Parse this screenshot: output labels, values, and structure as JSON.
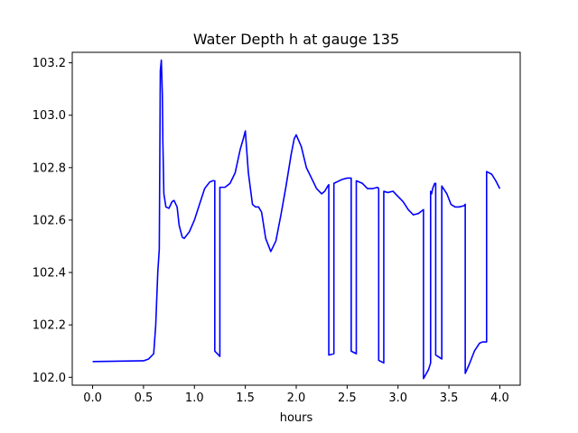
{
  "chart_data": {
    "type": "line",
    "title": "Water Depth h at gauge 135",
    "xlabel": "hours",
    "ylabel": "",
    "xlim": [
      -0.2,
      4.2
    ],
    "ylim": [
      101.97,
      103.24
    ],
    "x_ticks": [
      0.0,
      0.5,
      1.0,
      1.5,
      2.0,
      2.5,
      3.0,
      3.5,
      4.0
    ],
    "x_tick_labels": [
      "0.0",
      "0.5",
      "1.0",
      "1.5",
      "2.0",
      "2.5",
      "3.0",
      "3.5",
      "4.0"
    ],
    "y_ticks": [
      102.0,
      102.2,
      102.4,
      102.6,
      102.8,
      103.0,
      103.2
    ],
    "y_tick_labels": [
      "102.0",
      "102.2",
      "102.4",
      "102.6",
      "102.8",
      "103.0",
      "103.2"
    ],
    "grid": false,
    "legend": "none",
    "series": [
      {
        "color": "#0000ff",
        "x": [
          0.0,
          0.5,
          0.55,
          0.6,
          0.62,
          0.64,
          0.655,
          0.665,
          0.675,
          0.685,
          0.69,
          0.7,
          0.72,
          0.75,
          0.78,
          0.8,
          0.83,
          0.85,
          0.88,
          0.9,
          0.95,
          1.0,
          1.05,
          1.1,
          1.15,
          1.18,
          1.2,
          1.2,
          1.25,
          1.25,
          1.3,
          1.35,
          1.4,
          1.45,
          1.48,
          1.5,
          1.53,
          1.57,
          1.6,
          1.63,
          1.66,
          1.7,
          1.75,
          1.8,
          1.85,
          1.9,
          1.95,
          1.98,
          2.0,
          2.05,
          2.1,
          2.15,
          2.2,
          2.25,
          2.28,
          2.31,
          2.32,
          2.32,
          2.37,
          2.37,
          2.45,
          2.5,
          2.54,
          2.54,
          2.59,
          2.59,
          2.65,
          2.7,
          2.75,
          2.8,
          2.81,
          2.81,
          2.86,
          2.86,
          2.9,
          2.95,
          3.0,
          3.05,
          3.1,
          3.15,
          3.2,
          3.25,
          3.25,
          3.3,
          3.32,
          3.32,
          3.33,
          3.34,
          3.35,
          3.36,
          3.37,
          3.37,
          3.43,
          3.43,
          3.48,
          3.52,
          3.56,
          3.6,
          3.65,
          3.66,
          3.66,
          3.7,
          3.75,
          3.8,
          3.83,
          3.86,
          3.87,
          3.87,
          3.92,
          3.96,
          4.0
        ],
        "y": [
          102.06,
          102.063,
          102.07,
          102.09,
          102.2,
          102.4,
          102.49,
          103.17,
          103.21,
          103.08,
          102.9,
          102.7,
          102.65,
          102.645,
          102.67,
          102.675,
          102.65,
          102.58,
          102.535,
          102.53,
          102.555,
          102.6,
          102.66,
          102.72,
          102.745,
          102.75,
          102.75,
          102.1,
          102.08,
          102.725,
          102.725,
          102.74,
          102.78,
          102.87,
          102.91,
          102.94,
          102.78,
          102.66,
          102.65,
          102.65,
          102.63,
          102.53,
          102.48,
          102.52,
          102.62,
          102.73,
          102.85,
          102.91,
          102.925,
          102.88,
          102.8,
          102.76,
          102.72,
          102.7,
          102.71,
          102.73,
          102.735,
          102.085,
          102.09,
          102.74,
          102.755,
          102.76,
          102.76,
          102.1,
          102.09,
          102.75,
          102.74,
          102.72,
          102.72,
          102.725,
          102.72,
          102.065,
          102.055,
          102.71,
          102.705,
          102.71,
          102.69,
          102.67,
          102.64,
          102.62,
          102.625,
          102.64,
          101.995,
          102.03,
          102.055,
          102.71,
          102.7,
          102.72,
          102.73,
          102.74,
          102.74,
          102.085,
          102.07,
          102.73,
          102.7,
          102.66,
          102.65,
          102.65,
          102.655,
          102.66,
          102.015,
          102.05,
          102.1,
          102.13,
          102.135,
          102.135,
          102.135,
          102.785,
          102.775,
          102.75,
          102.72
        ]
      }
    ]
  }
}
